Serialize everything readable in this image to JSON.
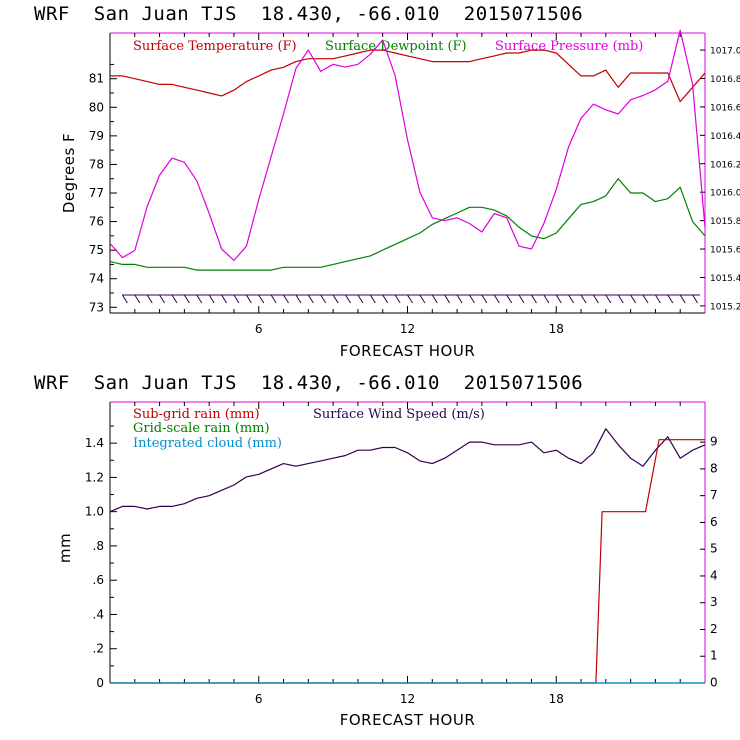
{
  "panels": [
    {
      "title": "WRF  San Juan TJS  18.430, -66.010  2015071506",
      "xlabel": "FORECAST HOUR",
      "ylabel": "Degrees F",
      "xticks": [
        "6",
        "12",
        "18"
      ],
      "yticks": [
        "73",
        "74",
        "75",
        "76",
        "77",
        "78",
        "79",
        "80",
        "81"
      ],
      "y2ticks": [
        "1015.2",
        "1015.4",
        "1015.6",
        "1015.8",
        "1016.0",
        "1016.2",
        "1016.4",
        "1016.6",
        "1016.8",
        "1017.0"
      ],
      "legend": [
        {
          "label": "Surface Temperature (F)",
          "color": "#c00000"
        },
        {
          "label": "Surface Dewpoint (F)",
          "color": "#008000"
        },
        {
          "label": "Surface Pressure (mb)",
          "color": "#e000e0"
        }
      ]
    },
    {
      "title": "WRF  San Juan TJS  18.430, -66.010  2015071506",
      "xlabel": "FORECAST HOUR",
      "ylabel": "mm",
      "xticks": [
        "6",
        "12",
        "18"
      ],
      "yticks": [
        "0",
        ".2",
        ".4",
        ".6",
        ".8",
        "1.0",
        "1.2",
        "1.4"
      ],
      "y2ticks": [
        "0",
        "1",
        "2",
        "3",
        "4",
        "5",
        "6",
        "7",
        "8",
        "9"
      ],
      "legend": [
        {
          "label": "Sub-grid rain (mm)",
          "color": "#c00000"
        },
        {
          "label": "Surface Wind Speed (m/s)",
          "color": "#300050"
        },
        {
          "label": "Grid-scale rain (mm)",
          "color": "#008000"
        },
        {
          "label": "Integrated cloud (mm)",
          "color": "#0090d0"
        }
      ]
    }
  ],
  "chart_data": [
    {
      "type": "line",
      "title": "WRF  San Juan TJS  18.430, -66.010  2015071506",
      "xlabel": "FORECAST HOUR",
      "ylabel": "Degrees F",
      "xlim": [
        0,
        24
      ],
      "ylim": [
        72.8,
        82.6
      ],
      "y2lim": [
        1015.15,
        1017.12
      ],
      "x": [
        0,
        0.5,
        1,
        1.5,
        2,
        2.5,
        3,
        3.5,
        4,
        4.5,
        5,
        5.5,
        6,
        6.5,
        7,
        7.5,
        8,
        8.5,
        9,
        9.5,
        10,
        10.5,
        11,
        11.5,
        12,
        12.5,
        13,
        13.5,
        14,
        14.5,
        15,
        15.5,
        16,
        16.5,
        17,
        17.5,
        18,
        18.5,
        19,
        19.5,
        20,
        20.5,
        21,
        21.5,
        22,
        22.5,
        23,
        23.5,
        24
      ],
      "series": [
        {
          "name": "Surface Temperature (F)",
          "color": "#c00000",
          "axis": "left",
          "values": [
            81.1,
            81.1,
            81.0,
            80.9,
            80.8,
            80.8,
            80.7,
            80.6,
            80.5,
            80.4,
            80.6,
            80.9,
            81.1,
            81.3,
            81.4,
            81.6,
            81.7,
            81.7,
            81.7,
            81.8,
            81.9,
            82.0,
            82.0,
            81.9,
            81.8,
            81.7,
            81.6,
            81.6,
            81.6,
            81.6,
            81.7,
            81.8,
            81.9,
            81.9,
            82.0,
            82.0,
            81.9,
            81.5,
            81.1,
            81.1,
            81.3,
            80.7,
            81.2,
            81.2,
            81.2,
            81.2,
            80.2,
            80.7,
            81.2
          ]
        },
        {
          "name": "Surface Dewpoint (F)",
          "color": "#008000",
          "axis": "left",
          "values": [
            74.6,
            74.5,
            74.5,
            74.4,
            74.4,
            74.4,
            74.4,
            74.3,
            74.3,
            74.3,
            74.3,
            74.3,
            74.3,
            74.3,
            74.4,
            74.4,
            74.4,
            74.4,
            74.5,
            74.6,
            74.7,
            74.8,
            75.0,
            75.2,
            75.4,
            75.6,
            75.9,
            76.1,
            76.3,
            76.5,
            76.5,
            76.4,
            76.2,
            75.8,
            75.5,
            75.4,
            75.6,
            76.1,
            76.6,
            76.7,
            76.9,
            77.5,
            77.0,
            77.0,
            76.7,
            76.8,
            77.2,
            76.0,
            75.5
          ]
        },
        {
          "name": "Surface Pressure (mb)",
          "color": "#e000e0",
          "axis": "right",
          "values": [
            1015.64,
            1015.54,
            1015.59,
            1015.9,
            1016.12,
            1016.24,
            1016.21,
            1016.08,
            1015.85,
            1015.6,
            1015.52,
            1015.62,
            1015.95,
            1016.25,
            1016.55,
            1016.87,
            1017.0,
            1016.85,
            1016.9,
            1016.88,
            1016.9,
            1016.97,
            1017.07,
            1016.82,
            1016.37,
            1016.0,
            1015.82,
            1015.8,
            1015.82,
            1015.78,
            1015.72,
            1015.85,
            1015.82,
            1015.62,
            1015.6,
            1015.78,
            1016.02,
            1016.32,
            1016.52,
            1016.62,
            1016.58,
            1016.55,
            1016.65,
            1016.68,
            1016.72,
            1016.78,
            1017.14,
            1016.76,
            1015.75
          ]
        }
      ]
    },
    {
      "type": "line",
      "title": "WRF  San Juan TJS  18.430, -66.010  2015071506",
      "xlabel": "FORECAST HOUR",
      "ylabel": "mm",
      "xlim": [
        0,
        24
      ],
      "ylim": [
        0,
        1.64
      ],
      "y2lim": [
        0,
        10.5
      ],
      "series": [
        {
          "name": "Surface Wind Speed (m/s)",
          "color": "#300050",
          "axis": "right",
          "x": [
            0,
            0.5,
            1,
            1.5,
            2,
            2.5,
            3,
            3.5,
            4,
            4.5,
            5,
            5.5,
            6,
            6.5,
            7,
            7.5,
            8,
            8.5,
            9,
            9.5,
            10,
            10.5,
            11,
            11.5,
            12,
            12.5,
            13,
            13.5,
            14,
            14.5,
            15,
            15.5,
            16,
            16.5,
            17,
            17.5,
            18,
            18.5,
            19,
            19.5,
            20,
            20.5,
            21,
            21.5,
            22,
            22.5,
            23,
            23.5,
            24
          ],
          "values": [
            6.4,
            6.6,
            6.6,
            6.5,
            6.6,
            6.6,
            6.7,
            6.9,
            7.0,
            7.2,
            7.4,
            7.7,
            7.8,
            8.0,
            8.2,
            8.1,
            8.2,
            8.3,
            8.4,
            8.5,
            8.7,
            8.7,
            8.8,
            8.8,
            8.6,
            8.3,
            8.2,
            8.4,
            8.7,
            9.0,
            9.0,
            8.9,
            8.9,
            8.9,
            9.0,
            8.6,
            8.7,
            8.4,
            8.2,
            8.6,
            9.5,
            8.9,
            8.4,
            8.1,
            8.7,
            9.2,
            8.4,
            8.7,
            8.9
          ]
        },
        {
          "name": "Sub-grid rain (mm)",
          "color": "#c00000",
          "axis": "left",
          "x": [
            0,
            19.6,
            19.85,
            21.6,
            22.15,
            24
          ],
          "values": [
            0,
            0,
            1.0,
            1.0,
            1.42,
            1.42
          ]
        },
        {
          "name": "Grid-scale rain (mm)",
          "color": "#008000",
          "axis": "left",
          "x": [
            0,
            24
          ],
          "values": [
            0,
            0
          ]
        },
        {
          "name": "Integrated cloud (mm)",
          "color": "#0090d0",
          "axis": "left",
          "x": [
            0,
            24
          ],
          "values": [
            0,
            0
          ]
        }
      ]
    }
  ]
}
